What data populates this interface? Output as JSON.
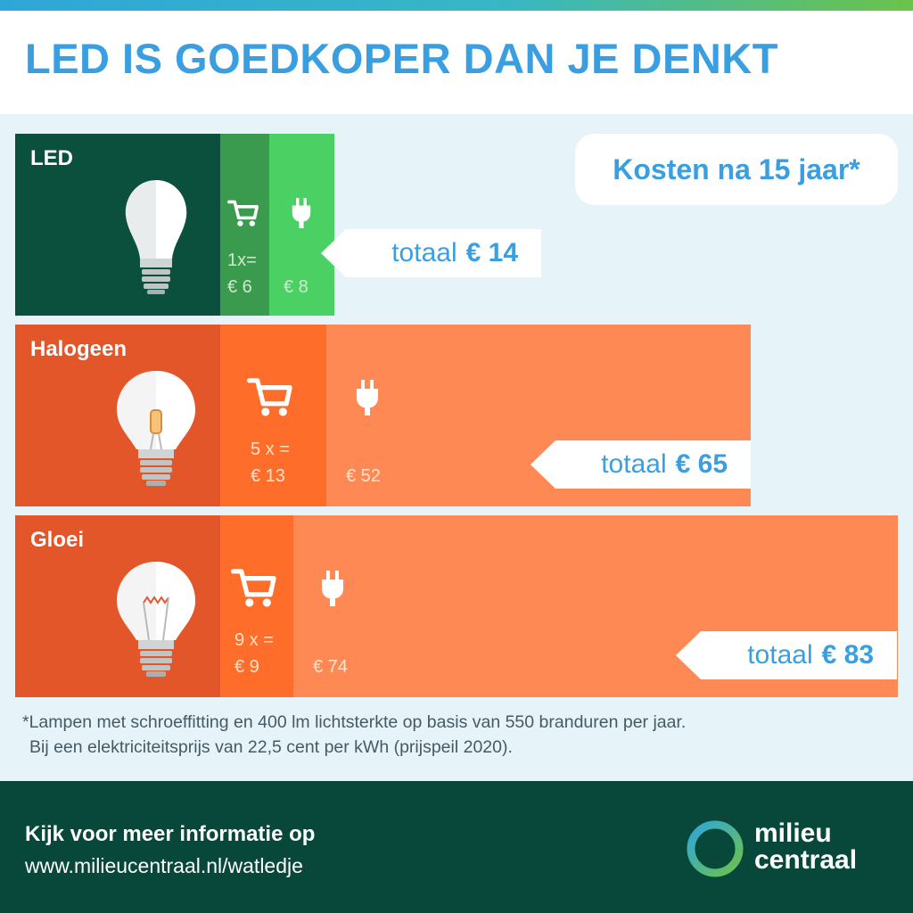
{
  "header": {
    "title": "LED IS GOEDKOPER DAN JE DENKT"
  },
  "period_label": "Kosten na 15 jaar*",
  "chart_data": {
    "type": "bar",
    "stacked": true,
    "orientation": "horizontal",
    "title": "LED IS GOEDKOPER DAN JE DENKT",
    "subtitle": "Kosten na 15 jaar*",
    "unit": "€",
    "categories": [
      "LED",
      "Halogeen",
      "Gloei"
    ],
    "series": [
      {
        "name": "purchase",
        "values": [
          6,
          13,
          9
        ],
        "labels": [
          "1x=",
          "5 x =",
          "9 x ="
        ],
        "display": [
          "€ 6",
          "€ 13",
          "€ 9"
        ]
      },
      {
        "name": "electricity",
        "values": [
          8,
          52,
          74
        ],
        "display": [
          "€ 8",
          "€ 52",
          "€ 74"
        ]
      }
    ],
    "totals": [
      {
        "label": "totaal",
        "value": "€ 14"
      },
      {
        "label": "totaal",
        "value": "€ 65"
      },
      {
        "label": "totaal",
        "value": "€ 83"
      }
    ],
    "colors": {
      "led_bulb_bg": "#0b4f3d",
      "led_purchase": "#3a9b4f",
      "led_energy": "#4bd064",
      "bulb_bg": "#e2562a",
      "purchase": "#ff6d2a",
      "energy": "#fe8954",
      "accent": "#3a9fe0",
      "footer_bg": "#08483a"
    },
    "icons": [
      "cart-icon",
      "plug-icon",
      "led-bulb-icon",
      "halogen-bulb-icon",
      "incandescent-bulb-icon"
    ]
  },
  "footnote": {
    "line1": "*Lampen met schroeffitting en 400 lm lichtsterkte op basis van 550 branduren per jaar.",
    "line2": "Bij een elektriciteitsprijs van 22,5 cent per kWh (prijspeil 2020)."
  },
  "footer": {
    "info_label": "Kijk voor meer informatie op",
    "url": "www.milieucentraal.nl/watledje",
    "logo_line1": "milieu",
    "logo_line2": "centraal"
  }
}
